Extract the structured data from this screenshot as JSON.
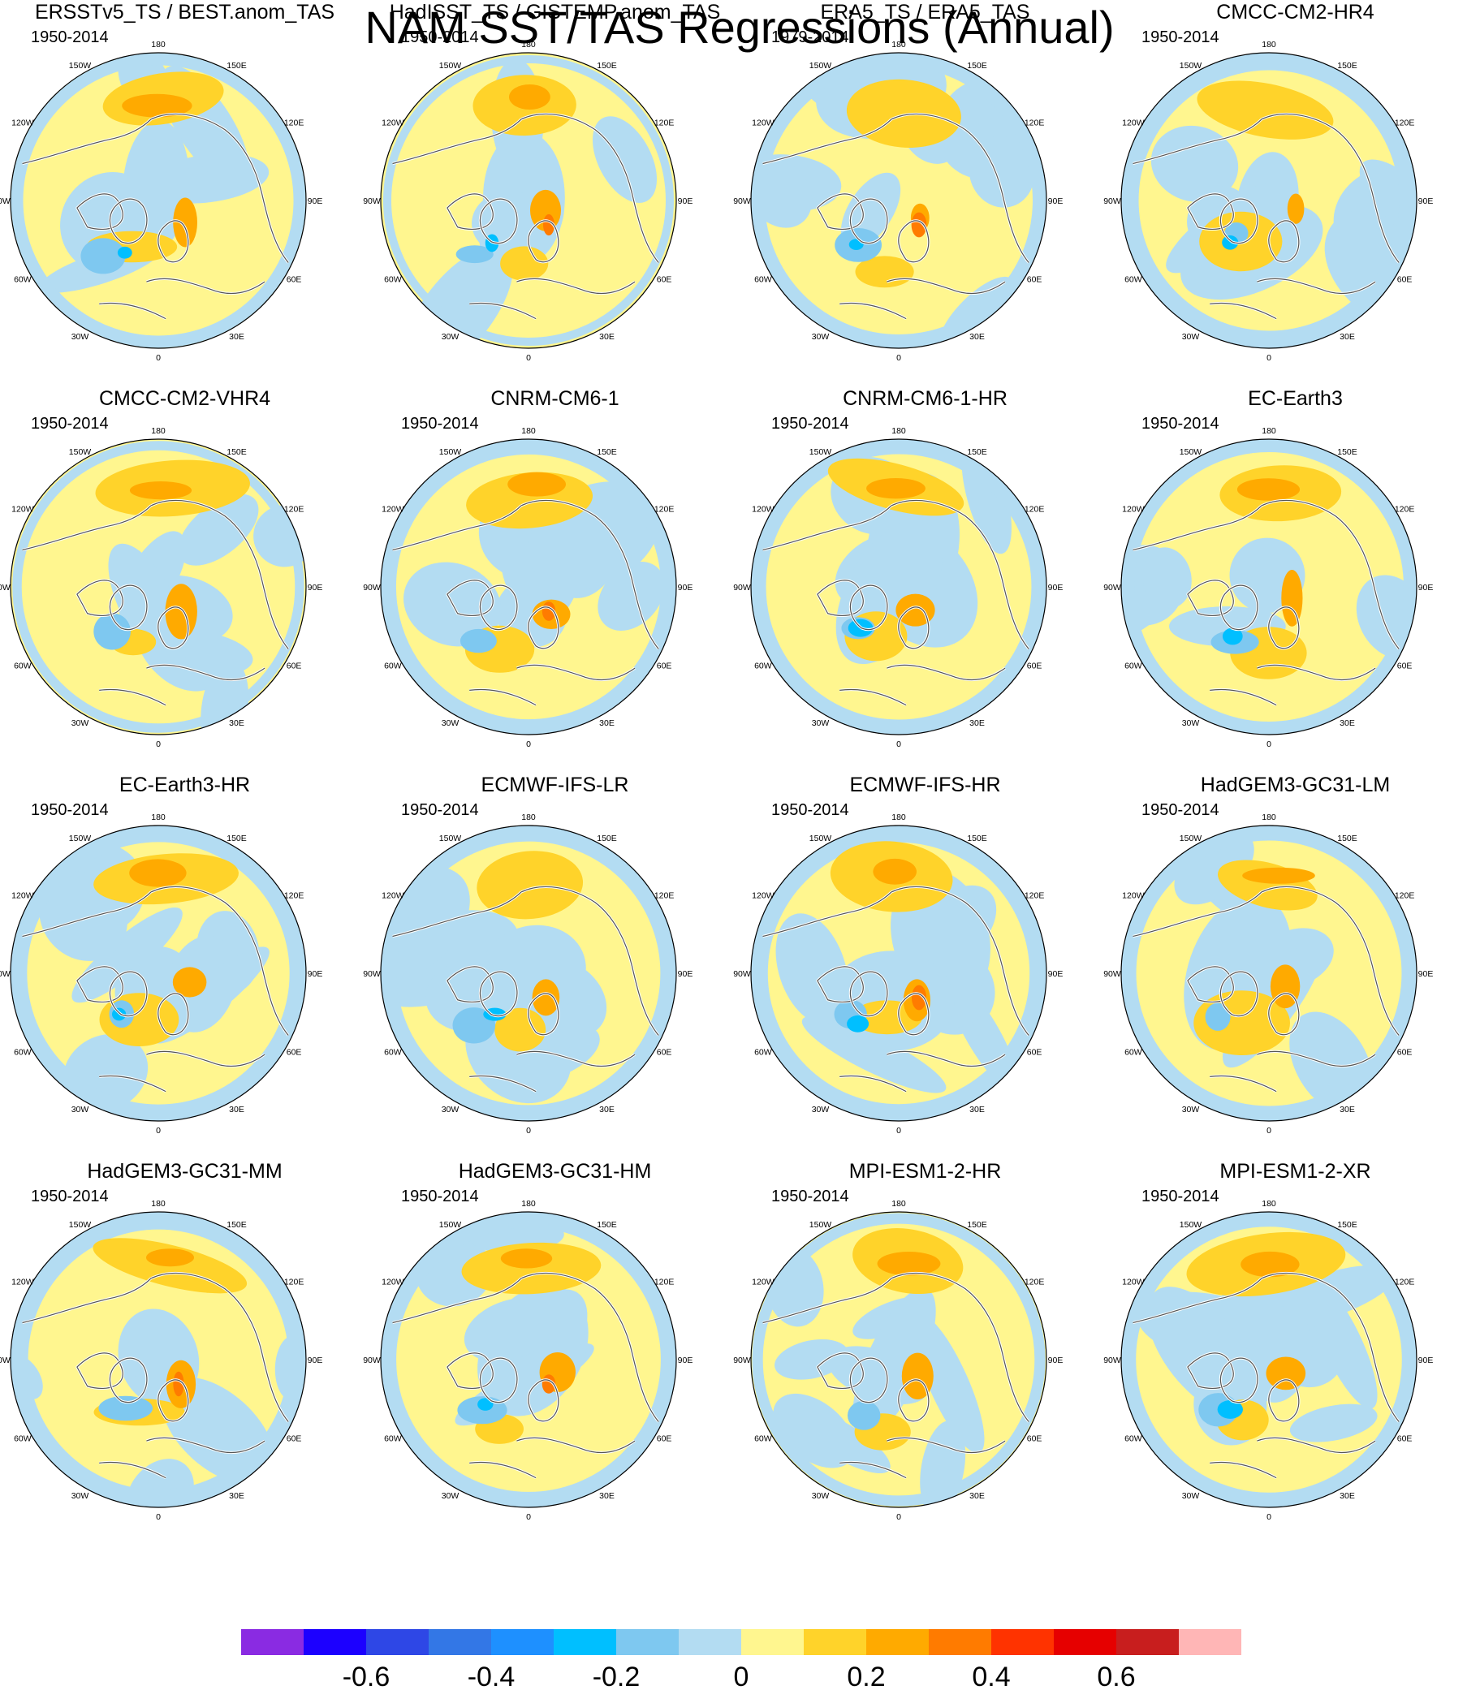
{
  "title": "NAM SST/TAS Regressions (Annual)",
  "panels": [
    {
      "title": "ERSSTv5_TS / BEST.anom_TAS",
      "period": "1950-2014"
    },
    {
      "title": "HadISST_TS / GISTEMP.anom_TAS",
      "period": "1950-2014"
    },
    {
      "title": "ERA5_TS / ERA5_TAS",
      "period": "1979-2014"
    },
    {
      "title": "CMCC-CM2-HR4",
      "period": "1950-2014"
    },
    {
      "title": "CMCC-CM2-VHR4",
      "period": "1950-2014"
    },
    {
      "title": "CNRM-CM6-1",
      "period": "1950-2014"
    },
    {
      "title": "CNRM-CM6-1-HR",
      "period": "1950-2014"
    },
    {
      "title": "EC-Earth3",
      "period": "1950-2014"
    },
    {
      "title": "EC-Earth3-HR",
      "period": "1950-2014"
    },
    {
      "title": "ECMWF-IFS-LR",
      "period": "1950-2014"
    },
    {
      "title": "ECMWF-IFS-HR",
      "period": "1950-2014"
    },
    {
      "title": "HadGEM3-GC31-LM",
      "period": "1950-2014"
    },
    {
      "title": "HadGEM3-GC31-MM",
      "period": "1950-2014"
    },
    {
      "title": "HadGEM3-GC31-HM",
      "period": "1950-2014"
    },
    {
      "title": "MPI-ESM1-2-HR",
      "period": "1950-2014"
    },
    {
      "title": "MPI-ESM1-2-XR",
      "period": "1950-2014"
    }
  ],
  "longitude_labels": [
    {
      "text": "180",
      "lon": 180
    },
    {
      "text": "150E",
      "lon": 150
    },
    {
      "text": "120E",
      "lon": 120
    },
    {
      "text": "90E",
      "lon": 90
    },
    {
      "text": "60E",
      "lon": 60
    },
    {
      "text": "30E",
      "lon": 30
    },
    {
      "text": "0",
      "lon": 0
    },
    {
      "text": "30W",
      "lon": -30
    },
    {
      "text": "60W",
      "lon": -60
    },
    {
      "text": "90W",
      "lon": -90
    },
    {
      "text": "120W",
      "lon": -120
    },
    {
      "text": "150W",
      "lon": -150
    }
  ],
  "colorbar": {
    "colors": [
      "#8a2be2",
      "#1c00ff",
      "#2e47e6",
      "#3377e6",
      "#1e90ff",
      "#00bfff",
      "#7ec8f0",
      "#b3dcf2",
      "#fff68f",
      "#ffd32a",
      "#ffaa00",
      "#ff7b00",
      "#ff3300",
      "#e60000",
      "#c81e1e",
      "#ffb6b6"
    ],
    "labels": [
      "-0.6",
      "-0.4",
      "-0.2",
      "0",
      "0.2",
      "0.4",
      "0.6"
    ]
  }
}
